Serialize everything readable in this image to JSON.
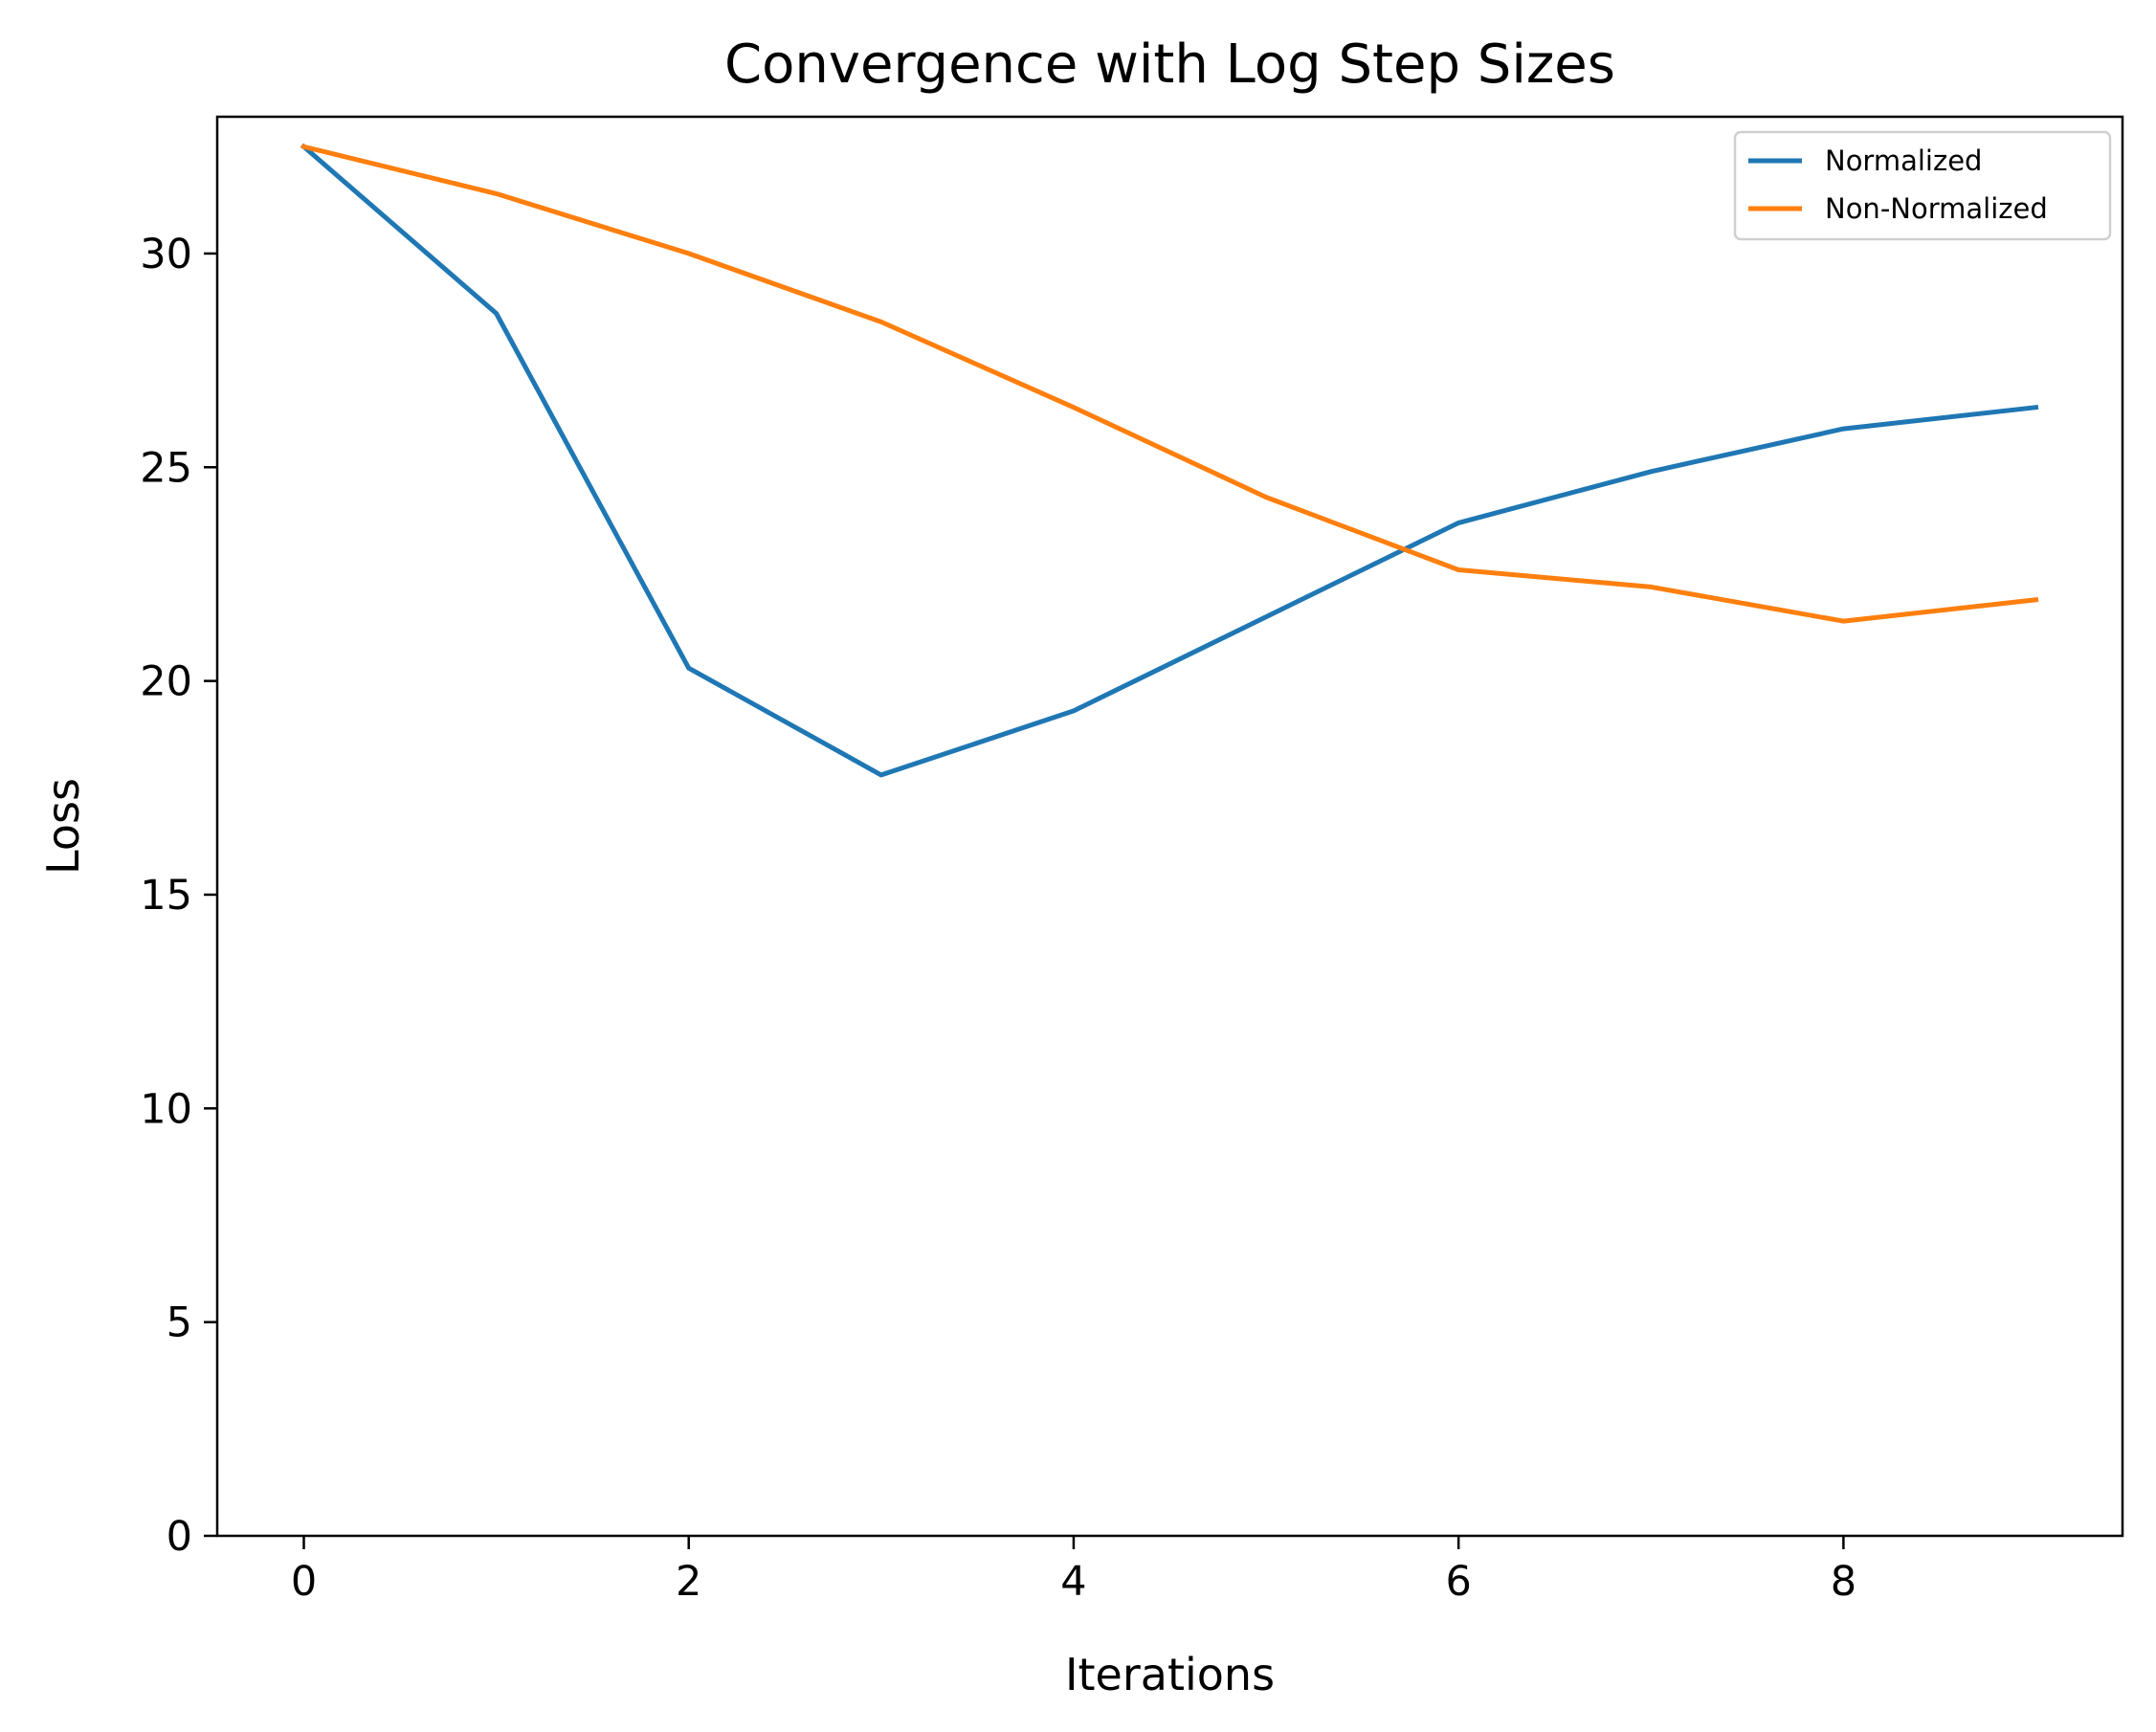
{
  "chart_data": {
    "type": "line",
    "title": "Convergence with Log Step Sizes",
    "xlabel": "Iterations",
    "ylabel": "Loss",
    "xlim": [
      -0.45,
      9.45
    ],
    "ylim": [
      0,
      33.2
    ],
    "xticks": [
      0,
      2,
      4,
      6,
      8
    ],
    "yticks": [
      0,
      5,
      10,
      15,
      20,
      25,
      30
    ],
    "grid": false,
    "legend_position": "top-right",
    "x": [
      0,
      1,
      2,
      3,
      4,
      5,
      6,
      7,
      8,
      9
    ],
    "series": [
      {
        "name": "Normalized",
        "color": "#1f77b4",
        "values": [
          32.5,
          28.6,
          20.3,
          17.8,
          19.3,
          21.5,
          23.7,
          24.9,
          25.9,
          26.4
        ]
      },
      {
        "name": "Non-Normalized",
        "color": "#ff7f0e",
        "values": [
          32.5,
          31.4,
          30.0,
          28.4,
          26.4,
          24.3,
          22.6,
          22.2,
          21.4,
          21.9
        ]
      }
    ]
  }
}
